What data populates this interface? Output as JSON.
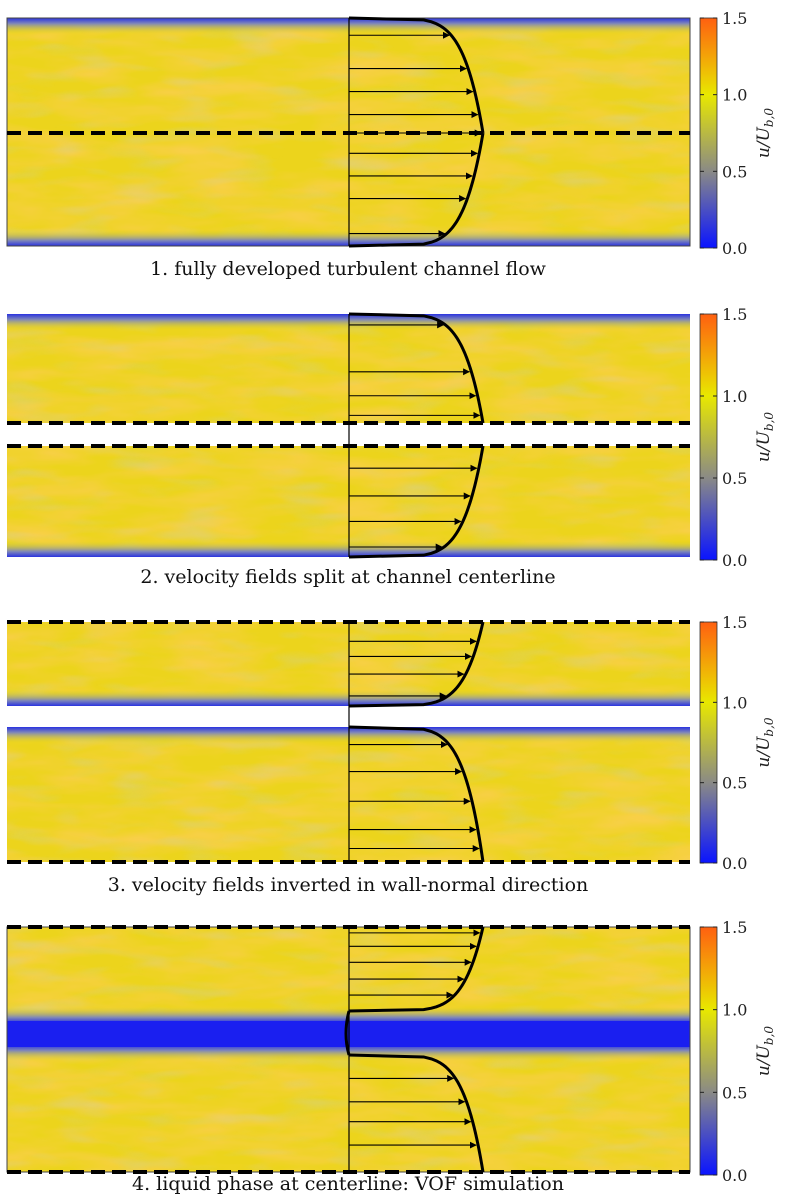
{
  "colormap": {
    "stops": [
      {
        "value": 0.0,
        "color": "#0a14ff"
      },
      {
        "value": 0.5,
        "color": "#8a8a86"
      },
      {
        "value": 1.0,
        "color": "#e8e800"
      },
      {
        "value": 1.5,
        "color": "#ff6010"
      }
    ]
  },
  "colorbar": {
    "ticks": [
      "0.0",
      "0.5",
      "1.0",
      "1.5"
    ],
    "label": "u/U_b,0",
    "label_main": "u/U",
    "label_sub": "b,0"
  },
  "panels": [
    {
      "id": 1,
      "caption": "1. fully developed turbulent channel flow",
      "type": "full"
    },
    {
      "id": 2,
      "caption": "2. velocity fields split at channel centerline",
      "type": "split"
    },
    {
      "id": 3,
      "caption": "3. velocity fields inverted in wall-normal direction",
      "type": "inverted"
    },
    {
      "id": 4,
      "caption": "4. liquid phase at centerline: VOF simulation",
      "type": "vof"
    }
  ]
}
